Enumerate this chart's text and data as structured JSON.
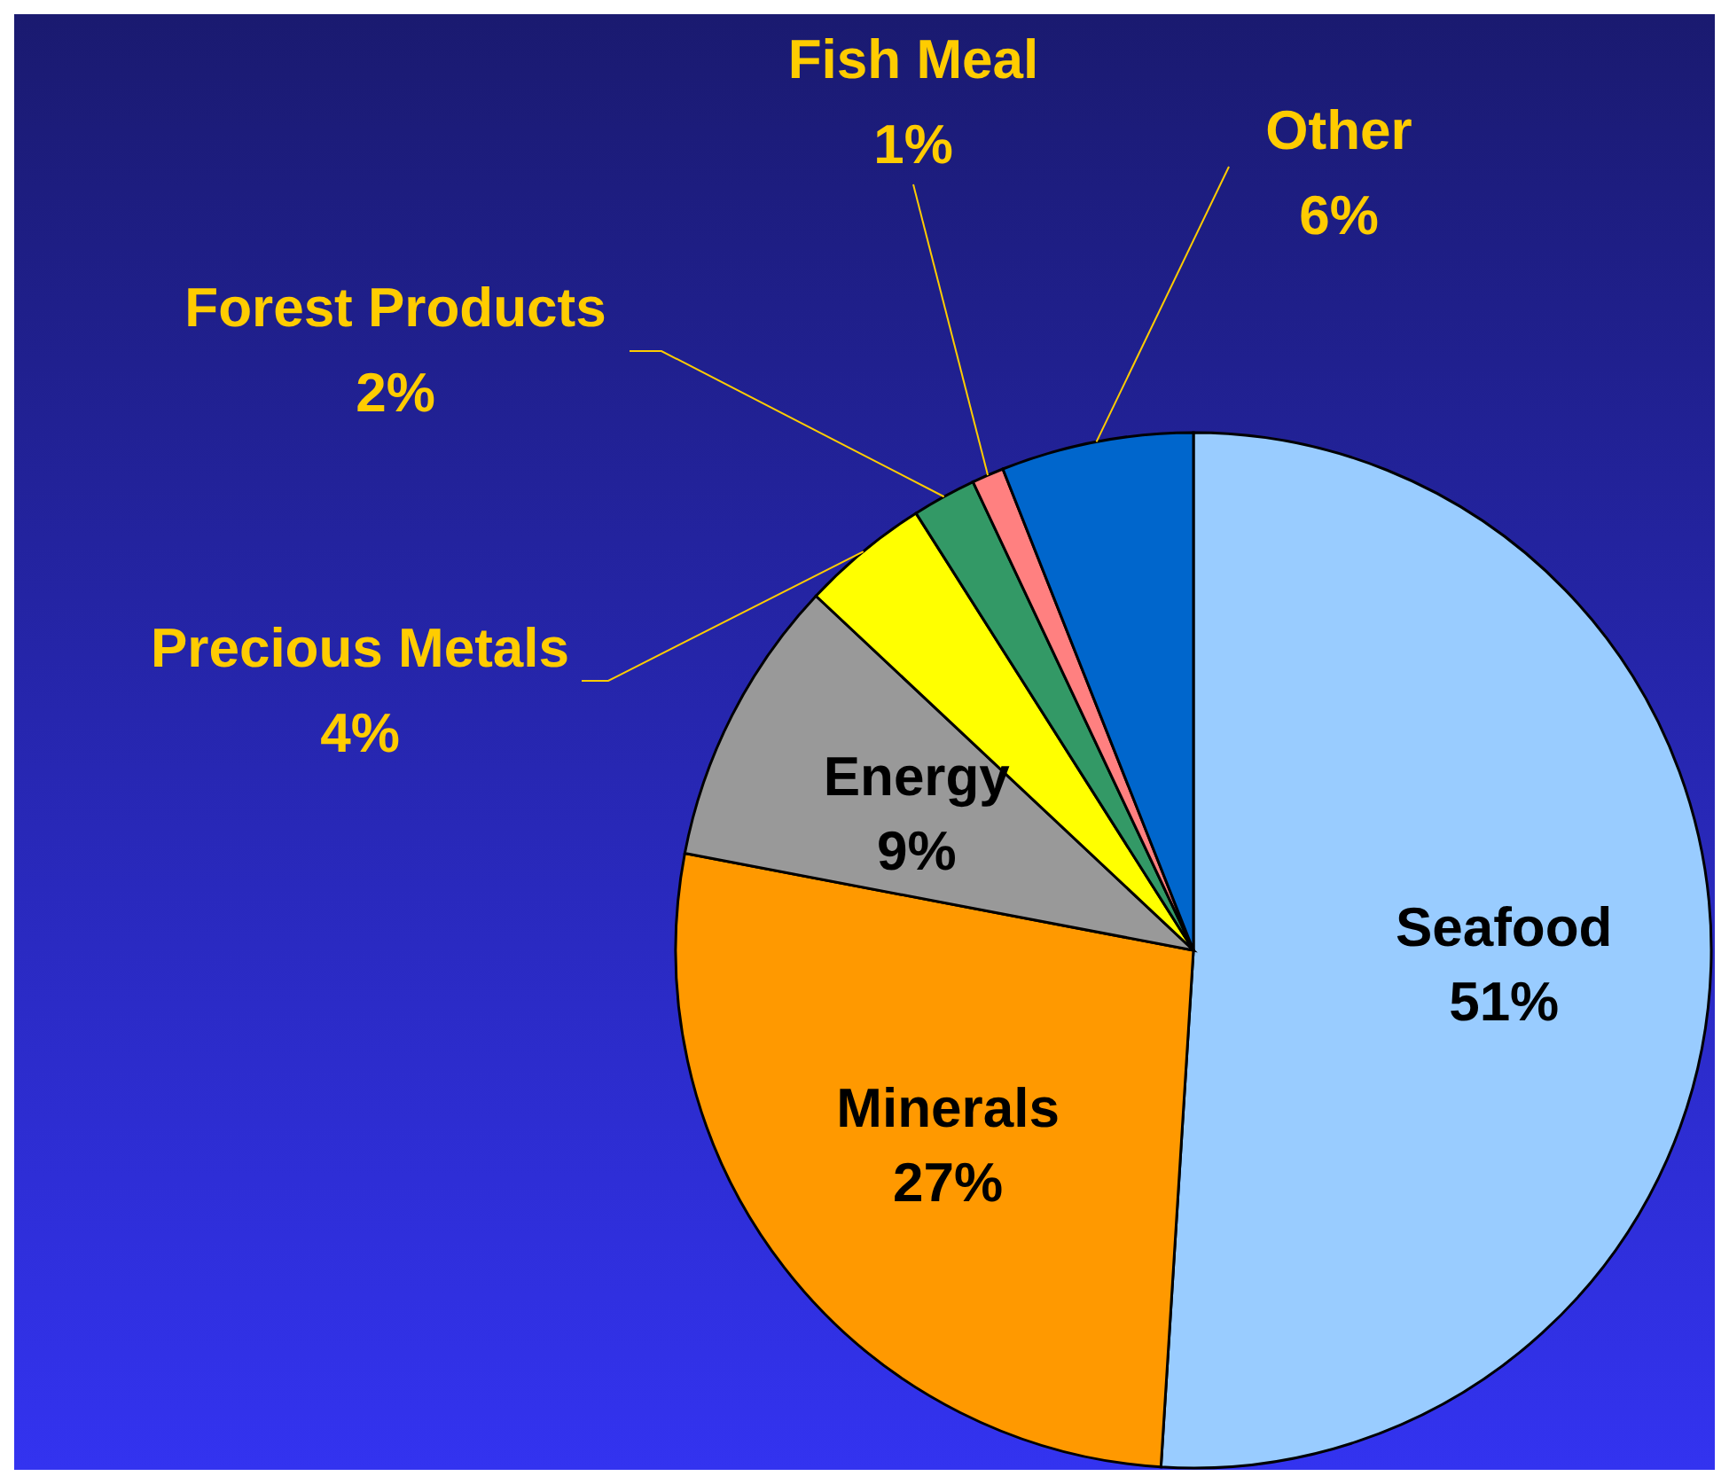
{
  "chart_data": {
    "type": "pie",
    "categories": [
      "Seafood",
      "Minerals",
      "Energy",
      "Precious Metals",
      "Forest Products",
      "Fish Meal",
      "Other"
    ],
    "values": [
      51,
      27,
      9,
      4,
      2,
      1,
      6
    ],
    "value_labels": [
      "51%",
      "27%",
      "9%",
      "4%",
      "2%",
      "1%",
      "6%"
    ],
    "colors": [
      "#99ccff",
      "#ff9900",
      "#999999",
      "#ffff00",
      "#339966",
      "#ff8080",
      "#0066cc"
    ],
    "legend": false
  }
}
